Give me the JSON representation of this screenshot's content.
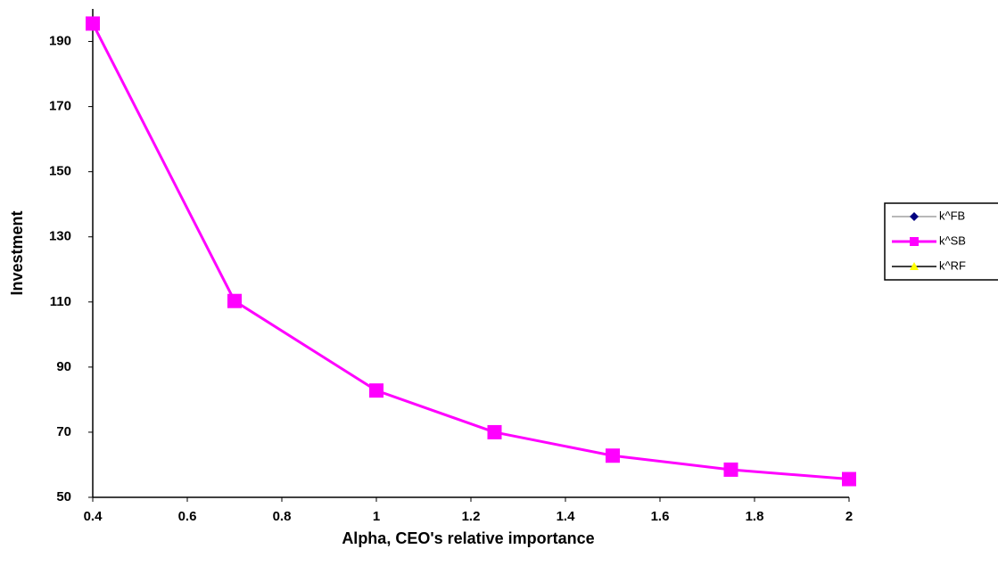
{
  "chart_data": {
    "type": "line",
    "x_label": "Alpha, CEO's relative importance",
    "y_label": "Investment",
    "x": [
      0.4,
      0.7,
      1,
      1.25,
      1.5,
      1.75,
      2
    ],
    "series": [
      {
        "name": "k^FB",
        "color": "#000080",
        "marker": "diamond",
        "line_color": "#a0a0a0",
        "values": [
          null,
          null,
          null,
          null,
          null,
          null,
          null
        ]
      },
      {
        "name": "k^SB",
        "color": "#ff00ff",
        "marker": "square",
        "line_color": "#ff00ff",
        "values": [
          195.5,
          110.3,
          82.8,
          70,
          62.8,
          58.5,
          55.6
        ]
      },
      {
        "name": "k^RF",
        "color": "#ffff00",
        "marker": "triangle",
        "line_color": "#000000",
        "values": [
          null,
          null,
          null,
          null,
          null,
          null,
          null
        ]
      }
    ],
    "xlim": [
      0.4,
      2
    ],
    "xticks": [
      0.4,
      0.6,
      0.8,
      1,
      1.2,
      1.4,
      1.6,
      1.8,
      2
    ],
    "ylim": [
      50,
      200
    ],
    "yticks": [
      50,
      70,
      90,
      110,
      130,
      150,
      170,
      190
    ],
    "grid": false,
    "legend": "right"
  }
}
